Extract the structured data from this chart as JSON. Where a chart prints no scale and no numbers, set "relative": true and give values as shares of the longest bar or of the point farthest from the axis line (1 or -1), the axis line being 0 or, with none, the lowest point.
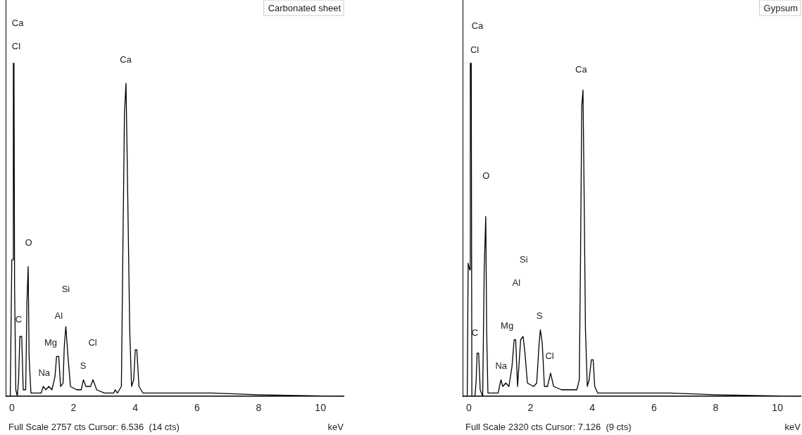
{
  "chart_data": [
    {
      "type": "line",
      "title": "Carbonated sheet",
      "xlabel": "keV",
      "relative": true,
      "color": "#000000",
      "marker": "none",
      "grid": false,
      "legend": false,
      "xlim": [
        -0.2,
        10.75
      ],
      "xticks": [
        0,
        2,
        4,
        6,
        8,
        10
      ],
      "x": [
        -0.2,
        -0.05,
        0.0,
        0.03,
        0.05,
        0.07,
        0.09,
        0.13,
        0.18,
        0.22,
        0.26,
        0.32,
        0.37,
        0.45,
        0.49,
        0.53,
        0.56,
        0.62,
        0.95,
        1.02,
        1.1,
        1.2,
        1.3,
        1.4,
        1.45,
        1.52,
        1.58,
        1.66,
        1.7,
        1.75,
        1.82,
        1.9,
        2.1,
        2.25,
        2.32,
        2.4,
        2.55,
        2.63,
        2.75,
        3.0,
        3.3,
        3.35,
        3.42,
        3.55,
        3.6,
        3.65,
        3.7,
        3.75,
        3.82,
        3.88,
        3.95,
        4.0,
        4.05,
        4.12,
        4.25,
        5.0,
        6.5,
        8.0,
        10.75
      ],
      "values": [
        0,
        0,
        0.41,
        0.41,
        1.0,
        1.0,
        0.33,
        0.02,
        0.0,
        0.05,
        0.18,
        0.18,
        0.02,
        0.02,
        0.28,
        0.39,
        0.12,
        0.01,
        0.01,
        0.03,
        0.02,
        0.03,
        0.02,
        0.06,
        0.12,
        0.12,
        0.03,
        0.04,
        0.15,
        0.21,
        0.12,
        0.03,
        0.02,
        0.02,
        0.05,
        0.03,
        0.03,
        0.05,
        0.02,
        0.01,
        0.01,
        0.02,
        0.01,
        0.03,
        0.45,
        0.85,
        0.94,
        0.64,
        0.2,
        0.03,
        0.05,
        0.14,
        0.14,
        0.03,
        0.01,
        0.01,
        0.01,
        0.005,
        0.0
      ],
      "annotations": [
        "Ca",
        "Cl",
        "Ca",
        "O",
        "Si",
        "Al",
        "C",
        "Mg",
        "Cl",
        "Na",
        "S",
        "Full Scale 2757 cts Cursor: 6.536  (14 cts)"
      ]
    },
    {
      "type": "line",
      "title": "Gypsum",
      "xlabel": "keV",
      "relative": true,
      "color": "#000000",
      "marker": "none",
      "grid": false,
      "legend": false,
      "xlim": [
        -0.2,
        10.75
      ],
      "xticks": [
        0,
        2,
        4,
        6,
        8,
        10
      ],
      "x": [
        -0.2,
        -0.05,
        -0.02,
        0.03,
        0.05,
        0.08,
        0.1,
        0.15,
        0.2,
        0.24,
        0.27,
        0.32,
        0.37,
        0.45,
        0.5,
        0.55,
        0.58,
        0.62,
        0.7,
        0.95,
        1.04,
        1.1,
        1.2,
        1.3,
        1.4,
        1.47,
        1.52,
        1.58,
        1.68,
        1.76,
        1.82,
        1.9,
        2.1,
        2.2,
        2.28,
        2.32,
        2.38,
        2.45,
        2.55,
        2.65,
        2.75,
        3.0,
        3.5,
        3.58,
        3.62,
        3.66,
        3.7,
        3.74,
        3.78,
        3.84,
        3.9,
        3.97,
        4.03,
        4.08,
        4.18,
        4.4,
        5.0,
        6.5,
        8.0,
        10.75
      ],
      "values": [
        0,
        0,
        0.4,
        0.38,
        1.0,
        1.0,
        0.0,
        0.0,
        0.0,
        0.05,
        0.13,
        0.13,
        0.02,
        0.0,
        0.38,
        0.54,
        0.19,
        0.01,
        0.01,
        0.01,
        0.05,
        0.03,
        0.04,
        0.03,
        0.09,
        0.17,
        0.17,
        0.03,
        0.17,
        0.18,
        0.13,
        0.04,
        0.03,
        0.04,
        0.16,
        0.2,
        0.16,
        0.03,
        0.03,
        0.07,
        0.03,
        0.02,
        0.02,
        0.05,
        0.41,
        0.87,
        0.92,
        0.58,
        0.2,
        0.03,
        0.05,
        0.11,
        0.11,
        0.03,
        0.01,
        0.01,
        0.01,
        0.01,
        0.005,
        0.0
      ],
      "annotations": [
        "Ca",
        "Cl",
        "Ca",
        "O",
        "Si",
        "Al",
        "Mg",
        "S",
        "C",
        "Cl",
        "Na",
        "Full Scale 2320 cts Cursor: 7.126  (9 cts)"
      ]
    }
  ]
}
